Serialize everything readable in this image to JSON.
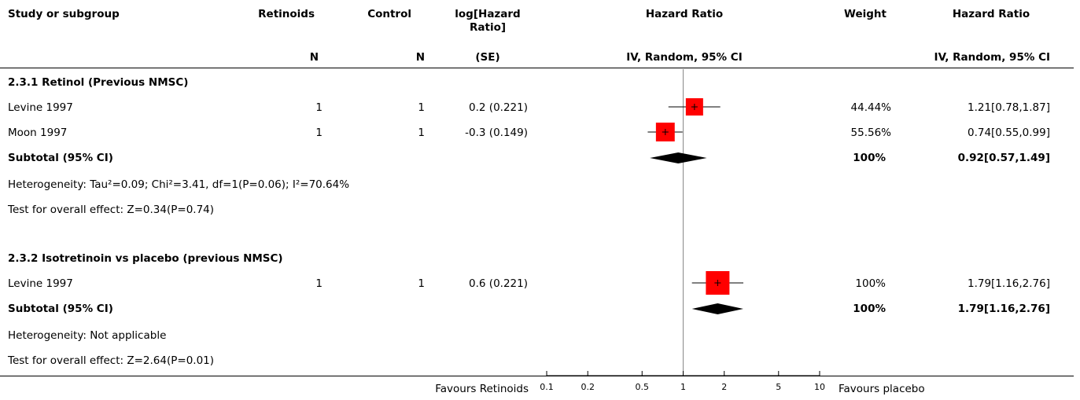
{
  "headers": {
    "study": "Study or subgroup",
    "retinoids": "Retinoids",
    "control": "Control",
    "loghr_line1": "log[Hazard",
    "loghr_line2": "Ratio]",
    "hr_plot": "Hazard Ratio",
    "weight": "Weight",
    "hr_ci": "Hazard Ratio",
    "n_retinoids": "N",
    "n_control": "N",
    "se": "(SE)",
    "plot_method": "IV, Random, 95% CI",
    "ci_method": "IV, Random, 95% CI"
  },
  "groups": [
    {
      "title": "2.3.1 Retinol (Previous NMSC)",
      "studies": [
        {
          "name": "Levine 1997",
          "n1": "1",
          "n2": "1",
          "loghr": "0.2 (0.221)",
          "weight": "44.44%",
          "ci": "1.21[0.78,1.87]"
        },
        {
          "name": "Moon 1997",
          "n1": "1",
          "n2": "1",
          "loghr": "-0.3 (0.149)",
          "weight": "55.56%",
          "ci": "0.74[0.55,0.99]"
        }
      ],
      "subtotal": {
        "label": "Subtotal (95% CI)",
        "weight": "100%",
        "ci": "0.92[0.57,1.49]"
      },
      "heterogeneity": "Heterogeneity: Tau²=0.09; Chi²=3.41, df=1(P=0.06); I²=70.64%",
      "overall": "Test for overall effect: Z=0.34(P=0.74)"
    },
    {
      "title": "2.3.2 Isotretinoin vs placebo (previous NMSC)",
      "studies": [
        {
          "name": "Levine 1997",
          "n1": "1",
          "n2": "1",
          "loghr": "0.6 (0.221)",
          "weight": "100%",
          "ci": "1.79[1.16,2.76]"
        }
      ],
      "subtotal": {
        "label": "Subtotal (95% CI)",
        "weight": "100%",
        "ci": "1.79[1.16,2.76]"
      },
      "heterogeneity": "Heterogeneity: Not applicable",
      "overall": "Test for overall effect: Z=2.64(P=0.01)"
    }
  ],
  "footer": {
    "favours_left": "Favours Retinoids",
    "favours_right": "Favours placebo"
  },
  "chart_data": {
    "type": "forest",
    "xscale": "log",
    "xlim": [
      0.1,
      10
    ],
    "xticks": [
      "0.1",
      "0.2",
      "0.5",
      "1",
      "2",
      "5",
      "10"
    ],
    "reference_line": 1,
    "marker_color": "#ff0000",
    "diamond_color": "#000000",
    "studies": [
      {
        "label": "Levine 1997",
        "group": 0,
        "hr": 1.21,
        "lo": 0.78,
        "hi": 1.87,
        "weight": 44.44
      },
      {
        "label": "Moon 1997",
        "group": 0,
        "hr": 0.74,
        "lo": 0.55,
        "hi": 0.99,
        "weight": 55.56
      },
      {
        "label": "Levine 1997",
        "group": 1,
        "hr": 1.79,
        "lo": 1.16,
        "hi": 2.76,
        "weight": 100
      }
    ],
    "subtotals": [
      {
        "group": 0,
        "hr": 0.92,
        "lo": 0.57,
        "hi": 1.49
      },
      {
        "group": 1,
        "hr": 1.79,
        "lo": 1.16,
        "hi": 2.76
      }
    ]
  }
}
